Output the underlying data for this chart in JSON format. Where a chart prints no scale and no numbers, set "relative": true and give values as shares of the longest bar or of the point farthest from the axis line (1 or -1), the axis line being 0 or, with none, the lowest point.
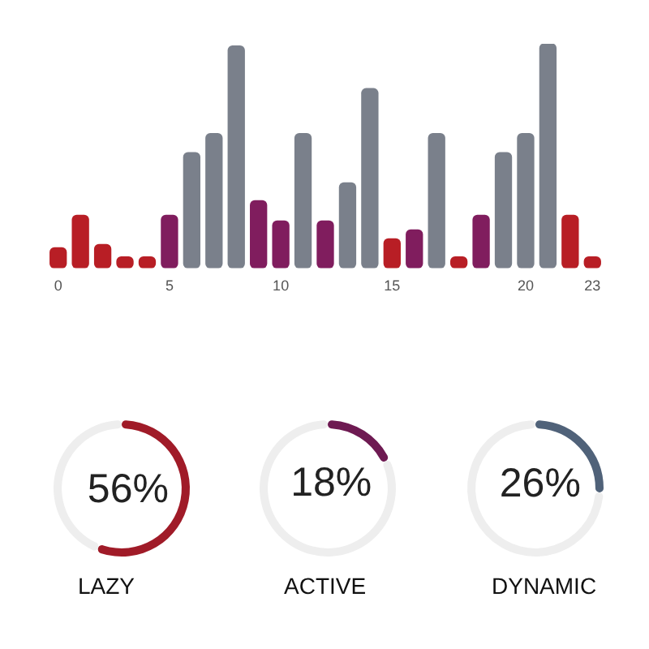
{
  "chart_data": [
    {
      "type": "bar",
      "relative": true,
      "categories": [
        "0",
        null,
        null,
        null,
        null,
        "5",
        null,
        null,
        null,
        null,
        "10",
        null,
        null,
        null,
        null,
        "15",
        null,
        null,
        null,
        null,
        null,
        "20",
        null,
        null,
        "23"
      ],
      "values": [
        0.09,
        0.235,
        0.105,
        0.05,
        0.05,
        0.235,
        0.515,
        0.6,
        0.99,
        0.3,
        0.21,
        0.6,
        0.21,
        0.38,
        0.8,
        0.13,
        0.17,
        0.6,
        0.05,
        0.235,
        0.515,
        0.6,
        1,
        0.235,
        0.05
      ],
      "colors": [
        "#b81e25",
        "#b81e25",
        "#b81e25",
        "#b81e25",
        "#b81e25",
        "#801d5e",
        "#7a808b",
        "#7a808b",
        "#7a808b",
        "#801d5e",
        "#801d5e",
        "#7a808b",
        "#801d5e",
        "#7a808b",
        "#7a808b",
        "#b81e25",
        "#801d5e",
        "#7a808b",
        "#b81e25",
        "#801d5e",
        "#7a808b",
        "#7a808b",
        "#7a808b",
        "#b81e25",
        "#b81e25"
      ]
    },
    {
      "type": "donut",
      "title": "LAZY",
      "categories": [
        null,
        null
      ],
      "values": [
        56,
        44
      ],
      "colors": [
        "#a01b28",
        "#eeeeee"
      ],
      "value_labels": [
        "56%",
        null
      ]
    },
    {
      "type": "donut",
      "title": "ACTIVE",
      "categories": [
        null,
        null
      ],
      "values": [
        18,
        82
      ],
      "colors": [
        "#6e1a52",
        "#eeeeee"
      ],
      "value_labels": [
        "18%",
        null
      ]
    },
    {
      "type": "donut",
      "title": "DYNAMIC",
      "categories": [
        null,
        null
      ],
      "values": [
        26,
        74
      ],
      "colors": [
        "#506279",
        "#eeeeee"
      ],
      "value_labels": [
        "26%",
        null
      ]
    }
  ]
}
